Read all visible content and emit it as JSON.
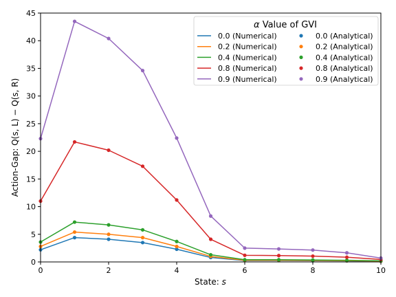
{
  "chart_data": {
    "type": "line",
    "x": [
      0,
      1,
      2,
      3,
      4,
      5,
      6,
      7,
      8,
      9,
      10
    ],
    "xlim": [
      0,
      10
    ],
    "ylim": [
      0,
      45
    ],
    "xticks": [
      0,
      2,
      4,
      6,
      8,
      10
    ],
    "yticks": [
      0,
      5,
      10,
      15,
      20,
      25,
      30,
      35,
      40,
      45
    ],
    "xlabel_prefix": "State: ",
    "xlabel_var": "s",
    "ylabel": "Action-Gap: Q(s, L) − Q(s, R)",
    "grid": false,
    "legend": {
      "placement": "top-right",
      "title_symbol": "α",
      "title_text": " Value of GVI"
    },
    "series": [
      {
        "name": "0.0 (Numerical)",
        "alpha": "0.0",
        "kind": "numerical",
        "color": "#1f77b4",
        "values": [
          2.2,
          4.4,
          4.1,
          3.5,
          2.3,
          0.8,
          0.25,
          0.25,
          0.22,
          0.18,
          0.12
        ]
      },
      {
        "name": "0.2 (Numerical)",
        "alpha": "0.2",
        "kind": "numerical",
        "color": "#ff7f0e",
        "values": [
          2.8,
          5.4,
          5.0,
          4.4,
          2.8,
          1.0,
          0.3,
          0.3,
          0.27,
          0.22,
          0.15
        ]
      },
      {
        "name": "0.4 (Numerical)",
        "alpha": "0.4",
        "kind": "numerical",
        "color": "#2ca02c",
        "values": [
          3.6,
          7.2,
          6.7,
          5.8,
          3.7,
          1.3,
          0.4,
          0.4,
          0.36,
          0.3,
          0.2
        ]
      },
      {
        "name": "0.8 (Numerical)",
        "alpha": "0.8",
        "kind": "numerical",
        "color": "#d62728",
        "values": [
          11.0,
          21.7,
          20.2,
          17.3,
          11.2,
          4.1,
          1.2,
          1.15,
          1.05,
          0.85,
          0.45
        ]
      },
      {
        "name": "0.9 (Numerical)",
        "alpha": "0.9",
        "kind": "numerical",
        "color": "#9467bd",
        "values": [
          22.3,
          43.5,
          40.4,
          34.6,
          22.4,
          8.3,
          2.5,
          2.35,
          2.15,
          1.65,
          0.7
        ]
      },
      {
        "name": "0.0 (Analytical)",
        "alpha": "0.0",
        "kind": "analytical",
        "color": "#1f77b4",
        "values": [
          2.2,
          4.4,
          4.1,
          3.5,
          2.3,
          0.8,
          0.25,
          0.25,
          0.22,
          0.18,
          0.12
        ]
      },
      {
        "name": "0.2 (Analytical)",
        "alpha": "0.2",
        "kind": "analytical",
        "color": "#ff7f0e",
        "values": [
          2.8,
          5.4,
          5.0,
          4.4,
          2.8,
          1.0,
          0.3,
          0.3,
          0.27,
          0.22,
          0.15
        ]
      },
      {
        "name": "0.4 (Analytical)",
        "alpha": "0.4",
        "kind": "analytical",
        "color": "#2ca02c",
        "values": [
          3.6,
          7.2,
          6.7,
          5.8,
          3.7,
          1.3,
          0.4,
          0.4,
          0.36,
          0.3,
          0.2
        ]
      },
      {
        "name": "0.8 (Analytical)",
        "alpha": "0.8",
        "kind": "analytical",
        "color": "#d62728",
        "values": [
          11.0,
          21.7,
          20.2,
          17.3,
          11.2,
          4.1,
          1.2,
          1.15,
          1.05,
          0.85,
          0.45
        ]
      },
      {
        "name": "0.9 (Analytical)",
        "alpha": "0.9",
        "kind": "analytical",
        "color": "#9467bd",
        "values": [
          22.3,
          43.5,
          40.4,
          34.6,
          22.4,
          8.3,
          2.5,
          2.35,
          2.15,
          1.65,
          0.7
        ]
      }
    ]
  }
}
